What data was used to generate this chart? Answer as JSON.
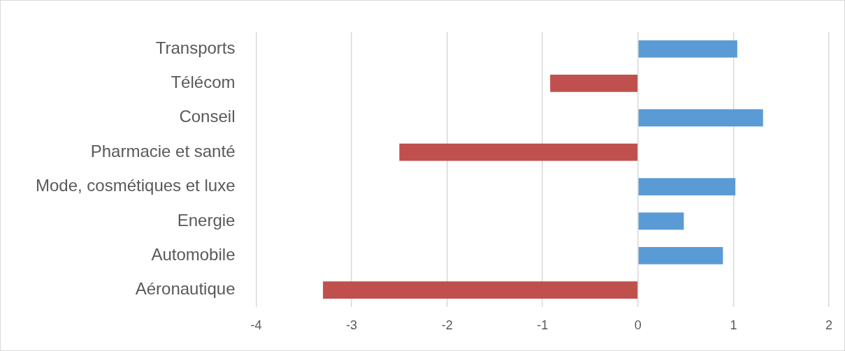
{
  "chart_data": {
    "type": "bar",
    "orientation": "horizontal",
    "categories": [
      "Transports",
      "Télécom",
      "Conseil",
      "Pharmacie et santé",
      "Mode, cosmétiques et luxe",
      "Energie",
      "Automobile",
      "Aéronautique"
    ],
    "values": [
      1.04,
      -0.92,
      1.31,
      -2.5,
      1.02,
      0.48,
      0.89,
      -3.3
    ],
    "colors": [
      "#5b9bd5",
      "#c0504d",
      "#5b9bd5",
      "#c0504d",
      "#5b9bd5",
      "#5b9bd5",
      "#5b9bd5",
      "#c0504d"
    ],
    "xlim": [
      -4,
      2
    ],
    "xticks": [
      -4,
      -3,
      -2,
      -1,
      0,
      1,
      2
    ],
    "grid": "x",
    "legend": false
  }
}
